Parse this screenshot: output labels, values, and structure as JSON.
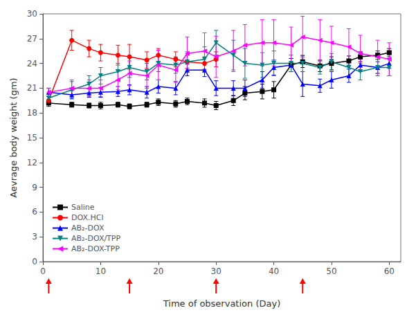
{
  "chart_data": {
    "type": "line",
    "title": "",
    "xlabel": "Time of observation (Day)",
    "ylabel": "Aevrage body weight (gm)",
    "xlim": [
      0,
      62
    ],
    "ylim": [
      0,
      30
    ],
    "xticks": [
      0,
      10,
      20,
      30,
      40,
      50,
      60
    ],
    "yticks": [
      0,
      3,
      6,
      9,
      12,
      15,
      18,
      21,
      24,
      27,
      30
    ],
    "grid": false,
    "legend": "lower left",
    "arrows": {
      "x": [
        1,
        15,
        30,
        45
      ],
      "color": "#ff0000"
    },
    "series": [
      {
        "name": "Saline",
        "color": "#000000",
        "marker": "square",
        "x": [
          1,
          5,
          8,
          10,
          13,
          15,
          18,
          20,
          23,
          25,
          28,
          30,
          33,
          35,
          38,
          40,
          43,
          45,
          48,
          50,
          53,
          55,
          58,
          60
        ],
        "values": [
          19.2,
          19.0,
          18.9,
          18.9,
          19.0,
          18.8,
          19.0,
          19.3,
          19.1,
          19.4,
          19.2,
          18.9,
          19.5,
          20.4,
          20.6,
          20.8,
          23.8,
          24.2,
          23.7,
          24.0,
          24.3,
          24.8,
          25.0,
          25.3
        ],
        "error": [
          0.4,
          0.3,
          0.3,
          0.4,
          0.3,
          0.3,
          0.3,
          0.4,
          0.4,
          0.4,
          0.5,
          0.5,
          0.6,
          0.8,
          0.9,
          1.0,
          0.8,
          0.7,
          0.7,
          0.8,
          0.6,
          0.6,
          0.5,
          0.5
        ]
      },
      {
        "name": "DOX.HCl",
        "color": "#ff0000",
        "marker": "circle",
        "x": [
          1,
          5,
          8,
          10,
          13,
          15,
          18,
          20,
          23,
          25,
          28,
          30
        ],
        "values": [
          19.5,
          26.8,
          25.8,
          25.3,
          25.0,
          24.8,
          24.4,
          25.0,
          24.5,
          24.2,
          24.0,
          24.5
        ],
        "error": [
          0.5,
          1.2,
          1.0,
          1.0,
          1.2,
          1.5,
          1.0,
          0.8,
          0.9,
          0.8,
          0.8,
          0.9
        ]
      },
      {
        "name": "AB₂-DOX",
        "color": "#0000ff",
        "marker": "triangle-up",
        "x": [
          1,
          5,
          8,
          10,
          13,
          15,
          18,
          20,
          23,
          25,
          28,
          30,
          33,
          35,
          38,
          40,
          43,
          45,
          48,
          50,
          53,
          55,
          58,
          60
        ],
        "values": [
          20.5,
          20.2,
          20.4,
          20.5,
          20.6,
          20.8,
          20.5,
          21.2,
          21.0,
          23.2,
          23.2,
          21.0,
          21.0,
          21.0,
          22.0,
          23.5,
          23.8,
          21.5,
          21.3,
          22.0,
          22.5,
          23.8,
          23.5,
          24.0
        ],
        "error": [
          0.5,
          0.5,
          0.5,
          0.6,
          0.6,
          0.6,
          0.7,
          0.8,
          0.8,
          0.7,
          0.8,
          0.9,
          0.9,
          1.0,
          1.0,
          0.9,
          0.8,
          1.5,
          0.8,
          1.0,
          0.8,
          0.7,
          0.7,
          0.6
        ]
      },
      {
        "name": "AB₂-DOX/TPP",
        "color": "#008080",
        "marker": "triangle-down",
        "x": [
          1,
          5,
          8,
          10,
          13,
          15,
          18,
          20,
          23,
          25,
          28,
          30,
          33,
          35,
          38,
          40,
          43,
          45,
          48,
          50,
          53,
          55,
          58,
          60
        ],
        "values": [
          19.8,
          20.8,
          21.5,
          22.5,
          23.0,
          23.5,
          23.0,
          24.0,
          23.8,
          24.2,
          24.5,
          26.5,
          25.0,
          24.0,
          23.8,
          24.0,
          24.0,
          24.0,
          23.5,
          24.2,
          23.5,
          23.0,
          23.5,
          23.5
        ],
        "error": [
          0.5,
          1.0,
          1.0,
          1.0,
          1.0,
          1.2,
          1.0,
          1.0,
          1.0,
          1.2,
          1.5,
          1.5,
          1.8,
          1.8,
          1.5,
          1.5,
          1.0,
          1.0,
          0.8,
          1.0,
          1.0,
          1.0,
          1.0,
          1.0
        ]
      },
      {
        "name": "AB₂-DOX-TPP",
        "color": "#ff00ff",
        "marker": "triangle-left",
        "x": [
          1,
          5,
          8,
          10,
          13,
          15,
          18,
          20,
          23,
          25,
          28,
          30,
          33,
          35,
          38,
          40,
          43,
          45,
          48,
          50,
          53,
          55,
          58,
          60
        ],
        "values": [
          20.5,
          21.0,
          21.0,
          21.0,
          22.0,
          22.8,
          22.5,
          23.8,
          23.2,
          25.2,
          25.5,
          24.8,
          25.5,
          26.2,
          26.5,
          26.5,
          26.2,
          27.2,
          26.8,
          26.5,
          26.0,
          25.2,
          24.8,
          24.5
        ],
        "error": [
          0.5,
          1.0,
          1.0,
          1.0,
          1.2,
          1.5,
          1.5,
          1.8,
          1.5,
          2.0,
          2.2,
          2.5,
          2.5,
          2.5,
          2.8,
          2.8,
          2.2,
          2.5,
          2.5,
          2.0,
          2.2,
          2.2,
          2.0,
          2.0
        ]
      }
    ]
  }
}
